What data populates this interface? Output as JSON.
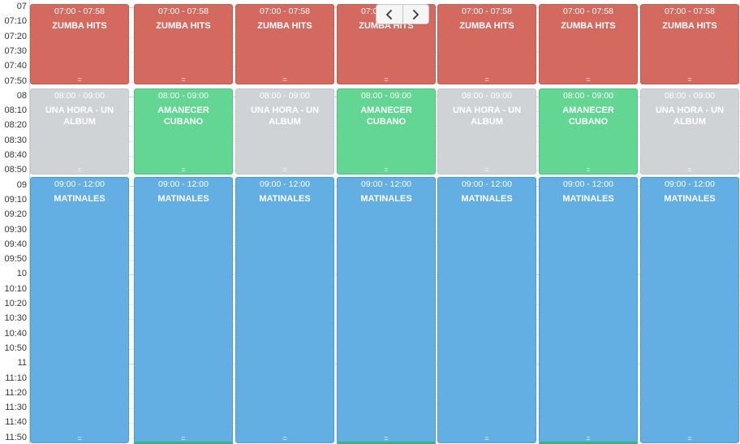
{
  "time_labels": [
    "07",
    "07:10",
    "07:20",
    "07:30",
    "07:40",
    "07:50",
    "08",
    "08:10",
    "08:20",
    "08:30",
    "08:40",
    "08:50",
    "09",
    "09:10",
    "09:20",
    "09:30",
    "09:40",
    "09:50",
    "10",
    "10:10",
    "10:20",
    "10:30",
    "10:40",
    "10:50",
    "11",
    "11:10",
    "11:20",
    "11:30",
    "11:40",
    "11:50"
  ],
  "nav": {
    "prev_icon": "chevron-left-icon",
    "next_icon": "chevron-right-icon"
  },
  "colors": {
    "zumba": "#d46a5f",
    "una_hora": "#d0d3d6",
    "amanecer": "#63d693",
    "matinales": "#63aee2",
    "next_event_strip": "#36b584"
  },
  "days": [
    {
      "events": [
        {
          "time": "07:00 - 07:58",
          "title": "ZUMBA HITS",
          "kind": "red",
          "handle": "="
        },
        {
          "time": "08:00 - 09:00",
          "title": "UNA HORA - UN ALBUM",
          "kind": "grey",
          "handle": "="
        },
        {
          "time": "09:00 - 12:00",
          "title": "MATINALES",
          "kind": "blue",
          "handle": "="
        }
      ],
      "next_strip": false
    },
    {
      "events": [
        {
          "time": "07:00 - 07:58",
          "title": "ZUMBA HITS",
          "kind": "red",
          "handle": "="
        },
        {
          "time": "08:00 - 09:00",
          "title": "AMANECER CUBANO",
          "kind": "green",
          "handle": "="
        },
        {
          "time": "09:00 - 12:00",
          "title": "MATINALES",
          "kind": "blue",
          "handle": "="
        }
      ],
      "next_strip": true
    },
    {
      "events": [
        {
          "time": "07:00 - 07:58",
          "title": "ZUMBA HITS",
          "kind": "red",
          "handle": "="
        },
        {
          "time": "08:00 - 09:00",
          "title": "UNA HORA - UN ALBUM",
          "kind": "grey",
          "handle": "="
        },
        {
          "time": "09:00 - 12:00",
          "title": "MATINALES",
          "kind": "blue",
          "handle": "="
        }
      ],
      "next_strip": false
    },
    {
      "events": [
        {
          "time": "07:00 - 07:58",
          "title": "ZUMBA HITS",
          "kind": "red",
          "handle": "="
        },
        {
          "time": "08:00 - 09:00",
          "title": "AMANECER CUBANO",
          "kind": "green",
          "handle": "="
        },
        {
          "time": "09:00 - 12:00",
          "title": "MATINALES",
          "kind": "blue",
          "handle": "="
        }
      ],
      "next_strip": true
    },
    {
      "events": [
        {
          "time": "07:00 - 07:58",
          "title": "ZUMBA HITS",
          "kind": "red",
          "handle": "="
        },
        {
          "time": "08:00 - 09:00",
          "title": "UNA HORA - UN ALBUM",
          "kind": "grey",
          "handle": "="
        },
        {
          "time": "09:00 - 12:00",
          "title": "MATINALES",
          "kind": "blue",
          "handle": "="
        }
      ],
      "next_strip": false
    },
    {
      "events": [
        {
          "time": "07:00 - 07:58",
          "title": "ZUMBA HITS",
          "kind": "red",
          "handle": "="
        },
        {
          "time": "08:00 - 09:00",
          "title": "AMANECER CUBANO",
          "kind": "green",
          "handle": "="
        },
        {
          "time": "09:00 - 12:00",
          "title": "MATINALES",
          "kind": "blue",
          "handle": "="
        }
      ],
      "next_strip": true
    },
    {
      "events": [
        {
          "time": "07:00 - 07:58",
          "title": "ZUMBA HITS",
          "kind": "red",
          "handle": "="
        },
        {
          "time": "08:00 - 09:00",
          "title": "UNA HORA - UN ALBUM",
          "kind": "grey",
          "handle": "="
        },
        {
          "time": "09:00 - 12:00",
          "title": "MATINALES",
          "kind": "blue",
          "handle": "="
        }
      ],
      "next_strip": false
    }
  ]
}
